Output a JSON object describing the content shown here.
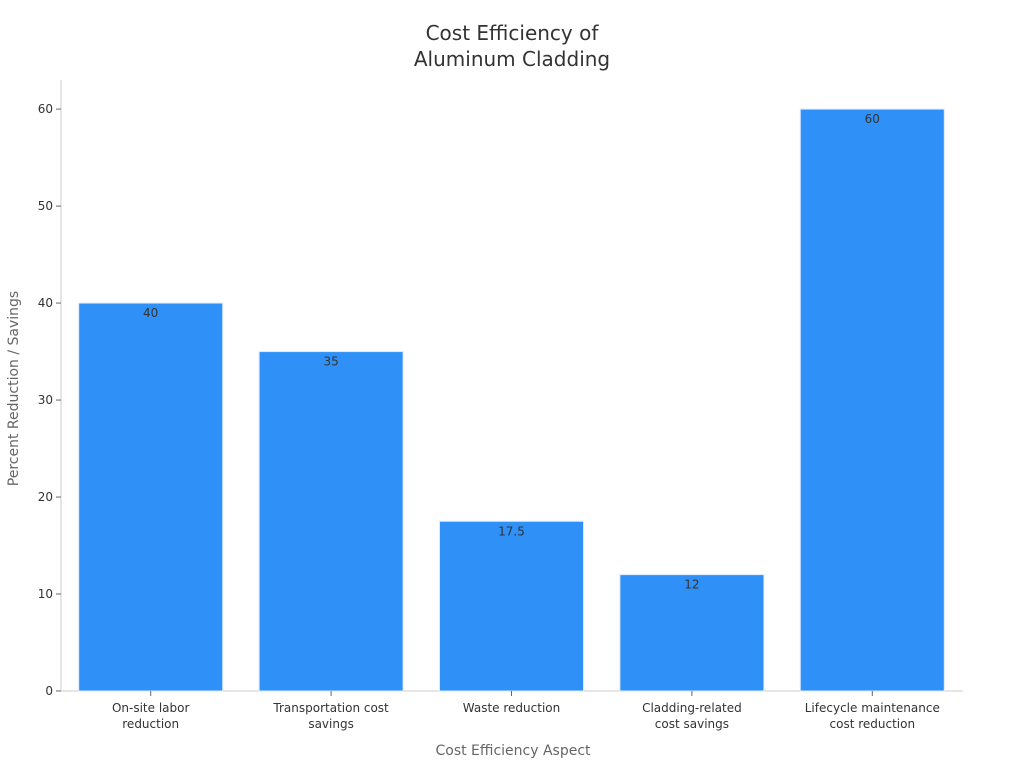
{
  "chart_data": {
    "type": "bar",
    "title": [
      "Cost Efficiency of",
      "Aluminum Cladding"
    ],
    "xlabel": "Cost Efficiency Aspect",
    "ylabel": "Percent Reduction / Savings",
    "categories": [
      [
        "On-site labor",
        "reduction"
      ],
      [
        "Transportation cost",
        "savings"
      ],
      [
        "Waste reduction"
      ],
      [
        "Cladding-related",
        "cost savings"
      ],
      [
        "Lifecycle maintenance",
        "cost reduction"
      ]
    ],
    "values": [
      40,
      35,
      17.5,
      12,
      60
    ],
    "value_labels": [
      "40",
      "35",
      "17.5",
      "12",
      "60"
    ],
    "ylim": [
      0,
      63
    ],
    "yticks": [
      0,
      10,
      20,
      30,
      40,
      50,
      60
    ],
    "grid": false,
    "bar_color": "#2f91f7",
    "bar_edge_color": "#d9eaff"
  }
}
